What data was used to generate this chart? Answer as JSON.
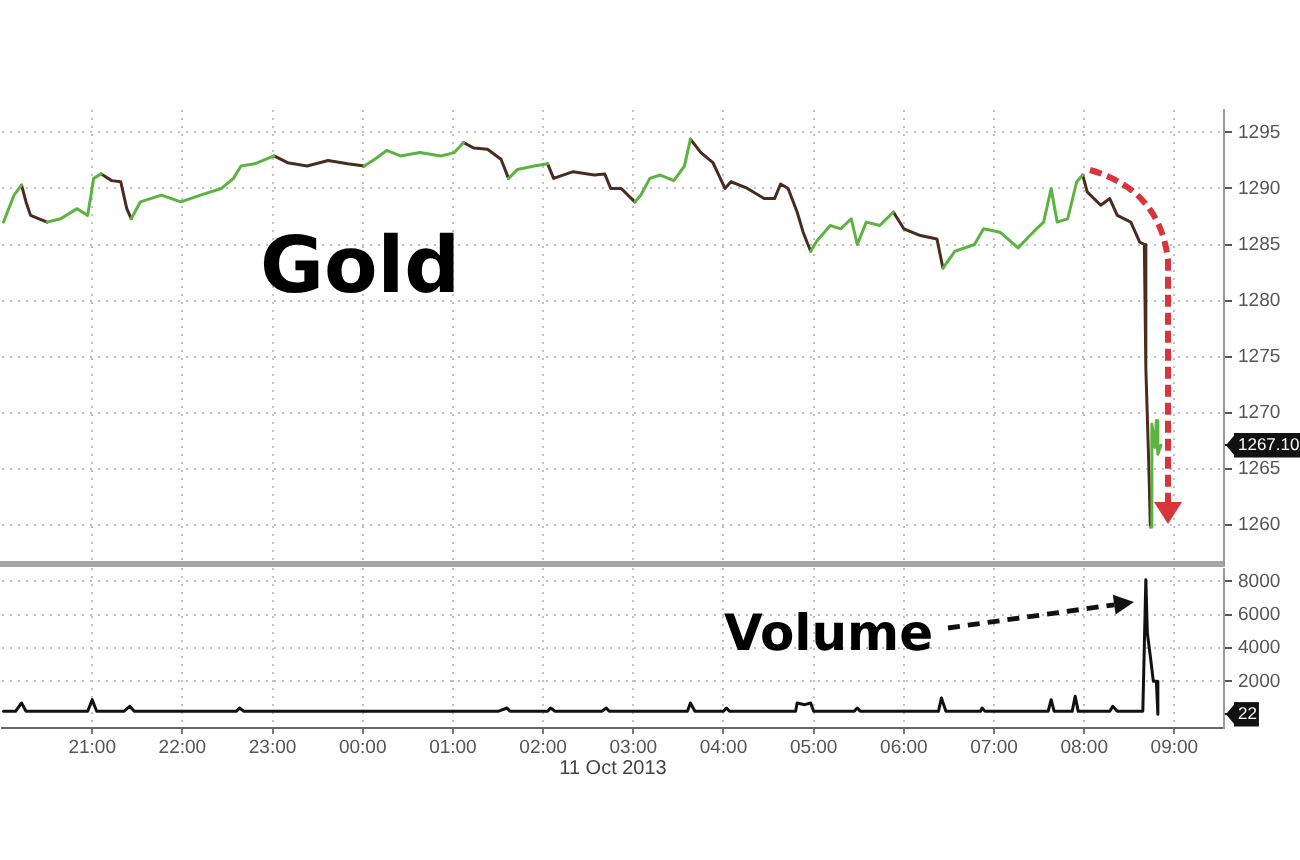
{
  "chart_data": [
    {
      "type": "line",
      "title": "Gold",
      "marker": "none",
      "grid": true,
      "tick_labels": "y",
      "x": [
        "2013-10-10T20:01",
        "2013-10-10T20:08",
        "2013-10-10T20:13",
        "2013-10-10T20:16",
        "2013-10-10T20:19",
        "2013-10-10T20:30",
        "2013-10-10T20:39",
        "2013-10-10T20:50",
        "2013-10-10T20:57",
        "2013-10-10T21:01",
        "2013-10-10T21:06",
        "2013-10-10T21:13",
        "2013-10-10T21:19",
        "2013-10-10T21:23",
        "2013-10-10T21:26",
        "2013-10-10T21:32",
        "2013-10-10T21:46",
        "2013-10-10T21:59",
        "2013-10-10T22:12",
        "2013-10-10T22:26",
        "2013-10-10T22:34",
        "2013-10-10T22:39",
        "2013-10-10T22:48",
        "2013-10-10T23:01",
        "2013-10-10T23:10",
        "2013-10-10T23:23",
        "2013-10-10T23:37",
        "2013-10-10T23:50",
        "2013-10-11T00:01",
        "2013-10-11T00:08",
        "2013-10-11T00:16",
        "2013-10-11T00:25",
        "2013-10-11T00:38",
        "2013-10-11T00:52",
        "2013-10-11T01:01",
        "2013-10-11T01:07",
        "2013-10-11T01:14",
        "2013-10-11T01:23",
        "2013-10-11T01:32",
        "2013-10-11T01:37",
        "2013-10-11T01:43",
        "2013-10-11T01:54",
        "2013-10-11T02:03",
        "2013-10-11T02:07",
        "2013-10-11T02:20",
        "2013-10-11T02:34",
        "2013-10-11T02:41",
        "2013-10-11T02:45",
        "2013-10-11T02:52",
        "2013-10-11T03:01",
        "2013-10-11T03:05",
        "2013-10-11T03:11",
        "2013-10-11T03:18",
        "2013-10-11T03:27",
        "2013-10-11T03:34",
        "2013-10-11T03:38",
        "2013-10-11T03:45",
        "2013-10-11T03:53",
        "2013-10-11T04:01",
        "2013-10-11T04:05",
        "2013-10-11T04:16",
        "2013-10-11T04:27",
        "2013-10-11T04:34",
        "2013-10-11T04:38",
        "2013-10-11T04:43",
        "2013-10-11T04:49",
        "2013-10-11T04:53",
        "2013-10-11T04:58",
        "2013-10-11T05:02",
        "2013-10-11T05:11",
        "2013-10-11T05:18",
        "2013-10-11T05:25",
        "2013-10-11T05:29",
        "2013-10-11T05:35",
        "2013-10-11T05:44",
        "2013-10-11T05:53",
        "2013-10-11T06:00",
        "2013-10-11T06:11",
        "2013-10-11T06:22",
        "2013-10-11T06:26",
        "2013-10-11T06:34",
        "2013-10-11T06:47",
        "2013-10-11T06:53",
        "2013-10-11T07:04",
        "2013-10-11T07:16",
        "2013-10-11T07:26",
        "2013-10-11T07:33",
        "2013-10-11T07:38",
        "2013-10-11T07:42",
        "2013-10-11T07:49",
        "2013-10-11T07:55",
        "2013-10-11T07:59",
        "2013-10-11T08:02",
        "2013-10-11T08:11",
        "2013-10-11T08:17",
        "2013-10-11T08:22",
        "2013-10-11T08:31",
        "2013-10-11T08:37",
        "2013-10-11T08:40",
        "2013-10-11T08:41",
        "2013-10-11T08:43",
        "2013-10-11T08:44",
        "2013-10-11T08:45",
        "2013-10-11T08:47",
        "2013-10-11T08:48",
        "2013-10-11T08:49",
        "2013-10-11T08:51"
      ],
      "series": [
        {
          "color": "#5cb341",
          "values": [
            1287.0,
            1289.4,
            1290.3,
            null,
            null,
            1287.0,
            1287.3,
            1288.2,
            1287.6,
            1290.9,
            1291.3,
            null,
            null,
            null,
            1287.3,
            1288.8,
            1289.4,
            1288.8,
            1289.4,
            1290.0,
            1290.9,
            1292.0,
            1292.2,
            1292.9,
            null,
            null,
            null,
            null,
            1292.0,
            1292.6,
            1293.4,
            1292.9,
            1293.2,
            1292.9,
            1293.2,
            1294.1,
            null,
            null,
            null,
            1290.9,
            1291.7,
            1292.0,
            1292.2,
            null,
            null,
            null,
            null,
            null,
            null,
            1288.8,
            1289.4,
            1290.9,
            1291.2,
            1290.7,
            1292.0,
            1294.4,
            null,
            null,
            null,
            null,
            null,
            null,
            null,
            null,
            null,
            null,
            null,
            1284.4,
            1285.3,
            1286.7,
            1286.4,
            1287.3,
            1285.0,
            1287.0,
            1286.7,
            1287.9,
            null,
            null,
            null,
            1282.9,
            1284.4,
            1285.0,
            1286.4,
            1286.1,
            1284.7,
            1286.1,
            1287.0,
            1290.0,
            1287.0,
            1287.3,
            1290.6,
            1291.2,
            null,
            null,
            null,
            null,
            null,
            null,
            null,
            null,
            null,
            1259.8,
            1269.0,
            1266.9,
            1269.3,
            1266.3,
            1267.1
          ]
        },
        {
          "color": "#4a2b1e",
          "values": [
            null,
            null,
            1290.3,
            1288.8,
            1287.6,
            1287.0,
            null,
            null,
            null,
            null,
            1291.3,
            1290.7,
            1290.6,
            1288.2,
            1287.3,
            null,
            null,
            null,
            null,
            null,
            null,
            null,
            null,
            1292.9,
            1292.3,
            1292.0,
            1292.5,
            1292.2,
            1292.0,
            null,
            null,
            null,
            null,
            null,
            null,
            1294.1,
            1293.6,
            1293.5,
            1292.6,
            1290.9,
            null,
            null,
            1292.2,
            1290.9,
            1291.5,
            1291.2,
            1291.3,
            1290.0,
            1290.0,
            1288.8,
            null,
            null,
            null,
            null,
            null,
            1294.4,
            1293.2,
            1292.3,
            1290.0,
            1290.6,
            1290.0,
            1289.1,
            1289.1,
            1290.4,
            1290.0,
            1287.9,
            1286.1,
            1284.4,
            null,
            null,
            null,
            null,
            null,
            null,
            null,
            1287.9,
            1286.4,
            1285.8,
            1285.5,
            1282.9,
            null,
            null,
            null,
            null,
            null,
            null,
            null,
            null,
            null,
            null,
            null,
            1291.2,
            1289.7,
            1288.5,
            1289.1,
            1287.6,
            1287.0,
            1285.2,
            1285.0,
            1274.0,
            1265.2,
            1259.8,
            null,
            null,
            null,
            null,
            null
          ]
        }
      ],
      "xlim": [
        "2013-10-10T20:00",
        "2013-10-11T09:33"
      ],
      "xticks": [
        {
          "value": "2013-10-10T21:00",
          "label": null
        },
        {
          "value": "2013-10-10T22:00",
          "label": null
        },
        {
          "value": "2013-10-10T23:00",
          "label": null
        },
        {
          "value": "2013-10-11T00:00",
          "label": null
        },
        {
          "value": "2013-10-11T01:00",
          "label": null
        },
        {
          "value": "2013-10-11T02:00",
          "label": null
        },
        {
          "value": "2013-10-11T03:00",
          "label": null
        },
        {
          "value": "2013-10-11T04:00",
          "label": null
        },
        {
          "value": "2013-10-11T05:00",
          "label": null
        },
        {
          "value": "2013-10-11T06:00",
          "label": null
        },
        {
          "value": "2013-10-11T07:00",
          "label": null
        },
        {
          "value": "2013-10-11T08:00",
          "label": null
        },
        {
          "value": "2013-10-11T09:00",
          "label": null
        }
      ],
      "ylim": [
        1256.5,
        1297
      ],
      "yticks": [
        1260,
        1265,
        1270,
        1275,
        1280,
        1285,
        1290,
        1295,
        {
          "value": 1267.1,
          "label": "1267.10"
        }
      ]
    },
    {
      "type": "line",
      "title": "Volume",
      "marker": "none",
      "grid": true,
      "color": "#111111",
      "x": [
        "2013-10-10T20:01",
        "2013-10-10T20:09",
        "2013-10-10T20:13",
        "2013-10-10T20:16",
        "2013-10-10T20:36",
        "2013-10-10T20:57",
        "2013-10-10T21:00",
        "2013-10-10T21:03",
        "2013-10-10T21:21",
        "2013-10-10T21:25",
        "2013-10-10T21:28",
        "2013-10-10T22:00",
        "2013-10-10T22:36",
        "2013-10-10T22:38",
        "2013-10-10T22:41",
        "2013-10-10T23:30",
        "2013-10-11T00:30",
        "2013-10-11T01:30",
        "2013-10-11T01:36",
        "2013-10-11T01:38",
        "2013-10-11T02:03",
        "2013-10-11T02:05",
        "2013-10-11T02:08",
        "2013-10-11T02:39",
        "2013-10-11T02:42",
        "2013-10-11T02:44",
        "2013-10-11T03:36",
        "2013-10-11T03:38",
        "2013-10-11T03:41",
        "2013-10-11T04:00",
        "2013-10-11T04:02",
        "2013-10-11T04:04",
        "2013-10-11T04:48",
        "2013-10-11T04:49",
        "2013-10-11T04:54",
        "2013-10-11T04:58",
        "2013-10-11T05:00",
        "2013-10-11T05:27",
        "2013-10-11T05:29",
        "2013-10-11T05:31",
        "2013-10-11T06:23",
        "2013-10-11T06:25",
        "2013-10-11T06:28",
        "2013-10-11T06:51",
        "2013-10-11T06:52",
        "2013-10-11T06:54",
        "2013-10-11T07:36",
        "2013-10-11T07:38",
        "2013-10-11T07:40",
        "2013-10-11T07:52",
        "2013-10-11T07:54",
        "2013-10-11T07:56",
        "2013-10-11T08:17",
        "2013-10-11T08:19",
        "2013-10-11T08:22",
        "2013-10-11T08:39",
        "2013-10-11T08:41",
        "2013-10-11T08:42",
        "2013-10-11T08:44",
        "2013-10-11T08:46",
        "2013-10-11T08:48",
        "2013-10-11T08:49"
      ],
      "values": [
        200,
        200,
        700,
        200,
        200,
        200,
        900,
        200,
        200,
        500,
        200,
        200,
        200,
        400,
        200,
        200,
        200,
        200,
        400,
        200,
        200,
        400,
        200,
        200,
        400,
        200,
        200,
        700,
        200,
        200,
        400,
        200,
        200,
        700,
        600,
        700,
        200,
        200,
        400,
        200,
        200,
        1000,
        200,
        200,
        400,
        200,
        200,
        900,
        200,
        200,
        1100,
        200,
        200,
        500,
        200,
        200,
        8100,
        4900,
        3500,
        2000,
        2000,
        22
      ],
      "annotations": [
        "11 Oct 2013"
      ],
      "xlim": [
        "2013-10-10T20:00",
        "2013-10-11T09:33"
      ],
      "xticks": [
        {
          "value": "2013-10-10T21:00",
          "label": "21:00"
        },
        {
          "value": "2013-10-10T22:00",
          "label": "22:00"
        },
        {
          "value": "2013-10-10T23:00",
          "label": "23:00"
        },
        {
          "value": "2013-10-11T00:00",
          "label": "00:00"
        },
        {
          "value": "2013-10-11T01:00",
          "label": "01:00"
        },
        {
          "value": "2013-10-11T02:00",
          "label": "02:00"
        },
        {
          "value": "2013-10-11T03:00",
          "label": "03:00"
        },
        {
          "value": "2013-10-11T04:00",
          "label": "04:00"
        },
        {
          "value": "2013-10-11T05:00",
          "label": "05:00"
        },
        {
          "value": "2013-10-11T06:00",
          "label": "06:00"
        },
        {
          "value": "2013-10-11T07:00",
          "label": "07:00"
        },
        {
          "value": "2013-10-11T08:00",
          "label": "08:00"
        },
        {
          "value": "2013-10-11T09:00",
          "label": "09:00"
        }
      ],
      "ylim": [
        -800,
        8800
      ],
      "yticks": [
        2000,
        4000,
        6000,
        8000,
        {
          "value": 22,
          "label": "22"
        }
      ]
    }
  ]
}
